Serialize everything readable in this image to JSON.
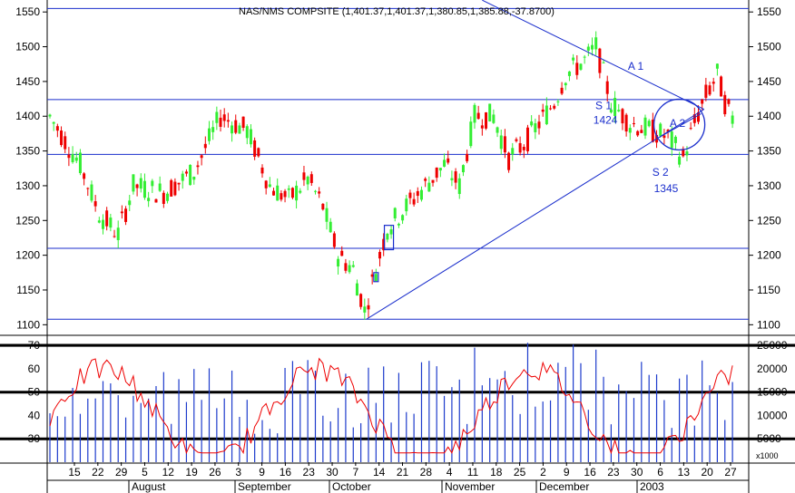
{
  "chart_data": [
    {
      "type": "candlestick",
      "title": "NAS/NMS COMPSITE (1,401.37,1,401.37,1,380.85,1,385.88,-37.8700)",
      "ylim": [
        1100,
        1560
      ],
      "y_ticks": [
        1100,
        1150,
        1200,
        1250,
        1300,
        1350,
        1400,
        1450,
        1500,
        1550
      ],
      "up_color": "#33ee33",
      "down_color": "#ee0000",
      "hlines": [
        1555,
        1424,
        1345,
        1210,
        1108
      ],
      "annotations": [
        {
          "label": "A 1",
          "x_index": 154.5,
          "y": 1467
        },
        {
          "label": "S 1",
          "x_index": 146,
          "y": 1410
        },
        {
          "label": "1424",
          "x_index": 146.5,
          "y": 1389
        },
        {
          "label": "S 2",
          "x_index": 161,
          "y": 1314
        },
        {
          "label": "1345",
          "x_index": 162.5,
          "y": 1291
        },
        {
          "label": "A 2",
          "x_index": 165.5,
          "y": 1385
        }
      ],
      "trendlines": [
        {
          "from": [
            83.5,
            1108
          ],
          "to": [
            172.5,
            1410
          ]
        },
        {
          "from": [
            114,
            1567
          ],
          "to": [
            172.5,
            1410
          ]
        }
      ],
      "highlight_circle": {
        "x_index": 166,
        "y": 1388
      },
      "highlight_boxes": [
        {
          "x0": 88.2,
          "x1": 90.6,
          "y0": 1208,
          "y1": 1243
        },
        {
          "x0": 85.4,
          "x1": 86.6,
          "y0": 1175,
          "y1": 1162
        }
      ]
    },
    {
      "type": "line+bar",
      "left_axis": {
        "ylim": [
          20,
          72
        ],
        "ticks": [
          30,
          40,
          50,
          60,
          70
        ],
        "hlines": [
          70,
          50,
          30
        ]
      },
      "right_axis": {
        "ylim": [
          0,
          26000
        ],
        "ticks": [
          5000,
          10000,
          15000,
          20000,
          25000
        ],
        "multiplier": "x1000"
      },
      "volume_color": "#1d3bcc",
      "oscillator_color": "#ee0000"
    }
  ],
  "x_axis": {
    "day_labels": [
      "15",
      "22",
      "29",
      "5",
      "12",
      "19",
      "26",
      "3",
      "9",
      "16",
      "23",
      "30",
      "7",
      "14",
      "21",
      "28",
      "4",
      "11",
      "18",
      "25",
      "2",
      "9",
      "16",
      "23",
      "30",
      "6",
      "13",
      "20",
      "27"
    ],
    "month_labels": [
      "August",
      "September",
      "October",
      "November",
      "December",
      "2003"
    ]
  }
}
